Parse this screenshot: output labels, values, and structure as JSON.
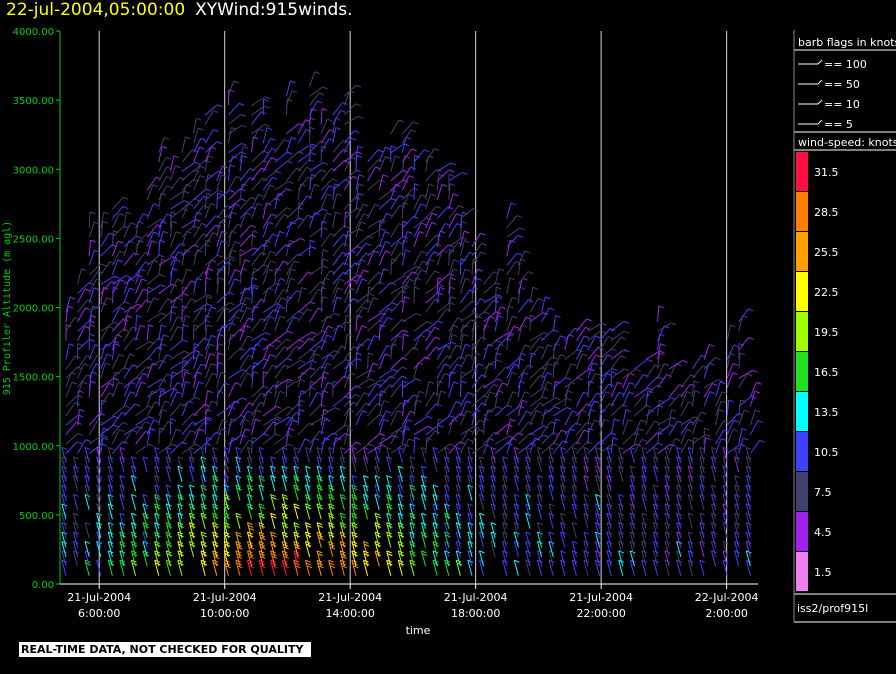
{
  "header": {
    "date": "22-jul-2004,05:00:00",
    "product": "XYWind:915winds."
  },
  "footer": {
    "notice": "REAL-TIME DATA, NOT CHECKED FOR QUALITY"
  },
  "source_label": "iss2/prof915l",
  "chart_data": {
    "type": "wind-barb",
    "xlabel": "time",
    "ylabel": "915 Profiler Altitude (m agl)",
    "ylim": [
      0,
      4000
    ],
    "yticks": [
      "0.00",
      "500.00",
      "1000.00",
      "1500.00",
      "2000.00",
      "2500.00",
      "3000.00",
      "3500.00",
      "4000.00"
    ],
    "xticks": [
      {
        "date": "21-Jul-2004",
        "time": "6:00:00"
      },
      {
        "date": "21-Jul-2004",
        "time": "10:00:00"
      },
      {
        "date": "21-Jul-2004",
        "time": "14:00:00"
      },
      {
        "date": "21-Jul-2004",
        "time": "18:00:00"
      },
      {
        "date": "21-Jul-2004",
        "time": "22:00:00"
      },
      {
        "date": "22-Jul-2004",
        "time": "2:00:00"
      }
    ],
    "xrange_hours": [
      4.75,
      27.0
    ],
    "barb_legend_title": "barb flags in knots",
    "barb_flags": [
      "== 100",
      "== 50",
      "== 10",
      "== 5"
    ],
    "speed_legend_title": "wind-speed: knots",
    "speed_levels": [
      "31.5",
      "28.5",
      "25.5",
      "22.5",
      "19.5",
      "16.5",
      "13.5",
      "10.5",
      "7.5",
      "4.5",
      "1.5"
    ],
    "speed_colors": [
      "#ff1040",
      "#ff8000",
      "#ffa000",
      "#ffff00",
      "#a0ff00",
      "#20e020",
      "#00ffff",
      "#4040ff",
      "#404070",
      "#a020f0",
      "#f080f0"
    ],
    "gridlines": "vertical"
  }
}
